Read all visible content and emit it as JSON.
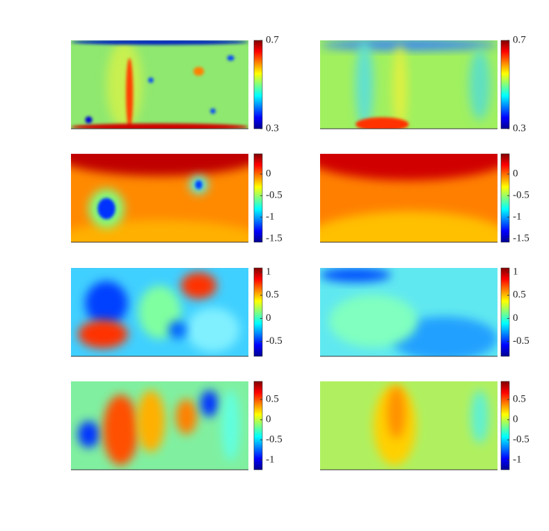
{
  "chart_data": [
    {
      "type": "heatmap",
      "colormap": "jet",
      "clim": [
        0.3,
        0.7
      ],
      "cticks": [
        0.3,
        0.7
      ]
    },
    {
      "type": "heatmap",
      "colormap": "jet",
      "clim": [
        0.3,
        0.7
      ],
      "cticks": [
        0.3,
        0.7
      ]
    },
    {
      "type": "heatmap",
      "colormap": "jet",
      "clim": [
        -1.58,
        0.47
      ],
      "cticks": [
        -1.5,
        -1,
        -0.5,
        0
      ]
    },
    {
      "type": "heatmap",
      "colormap": "jet",
      "clim": [
        -1.58,
        0.47
      ],
      "cticks": [
        -1.5,
        -1,
        -0.5,
        0
      ]
    },
    {
      "type": "heatmap",
      "colormap": "jet",
      "clim": [
        -0.82,
        1.09
      ],
      "cticks": [
        -0.5,
        0,
        0.5,
        1
      ]
    },
    {
      "type": "heatmap",
      "colormap": "jet",
      "clim": [
        -0.82,
        1.09
      ],
      "cticks": [
        -0.5,
        0,
        0.5,
        1
      ]
    },
    {
      "type": "heatmap",
      "colormap": "jet",
      "clim": [
        -1.24,
        0.95
      ],
      "cticks": [
        -1,
        -0.5,
        0,
        0.5
      ]
    },
    {
      "type": "heatmap",
      "colormap": "jet",
      "clim": [
        -1.24,
        0.95
      ],
      "cticks": [
        -1,
        -0.5,
        0,
        0.5
      ]
    }
  ]
}
